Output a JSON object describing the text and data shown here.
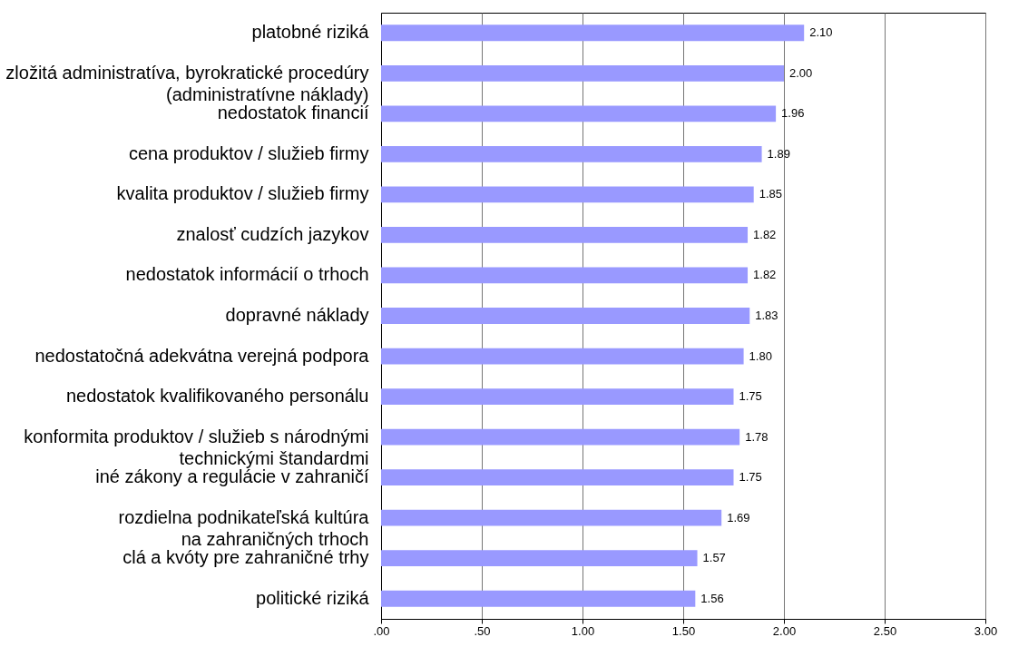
{
  "chart_data": {
    "type": "bar",
    "orientation": "horizontal",
    "categories": [
      "platobné riziká",
      "zložitá administratíva, byrokratické procedúry\n(administratívne náklady)",
      "nedostatok financií",
      "cena produktov / služieb firmy",
      "kvalita produktov / služieb firmy",
      "znalosť cudzích jazykov",
      "nedostatok informácií o trhoch",
      "dopravné náklady",
      "nedostatočná adekvátna verejná podpora",
      "nedostatok kvalifikovaného personálu",
      "konformita produktov / služieb s národnými\ntechnickými štandardmi",
      "iné zákony a regulácie v zahraničí",
      "rozdielna podnikateľská kultúra\nna zahraničných trhoch",
      "clá a kvóty pre zahraničné trhy",
      "politické riziká"
    ],
    "values": [
      2.1,
      2.0,
      1.96,
      1.89,
      1.85,
      1.82,
      1.82,
      1.83,
      1.8,
      1.75,
      1.78,
      1.75,
      1.69,
      1.57,
      1.56
    ],
    "value_labels": [
      "2.10",
      "2.00",
      "1.96",
      "1.89",
      "1.85",
      "1.82",
      "1.82",
      "1.83",
      "1.80",
      "1.75",
      "1.78",
      "1.75",
      "1.69",
      "1.57",
      "1.56"
    ],
    "color": "#9999ff",
    "xlim": [
      0,
      3
    ],
    "xticks": [
      {
        "value": 0,
        "label": ".00"
      },
      {
        "value": 0.5,
        "label": ".50"
      },
      {
        "value": 1,
        "label": "1.00"
      },
      {
        "value": 1.5,
        "label": "1.50"
      },
      {
        "value": 2,
        "label": "2.00"
      },
      {
        "value": 2.5,
        "label": "2.50"
      },
      {
        "value": 3,
        "label": "3.00"
      }
    ],
    "grid": "x"
  }
}
